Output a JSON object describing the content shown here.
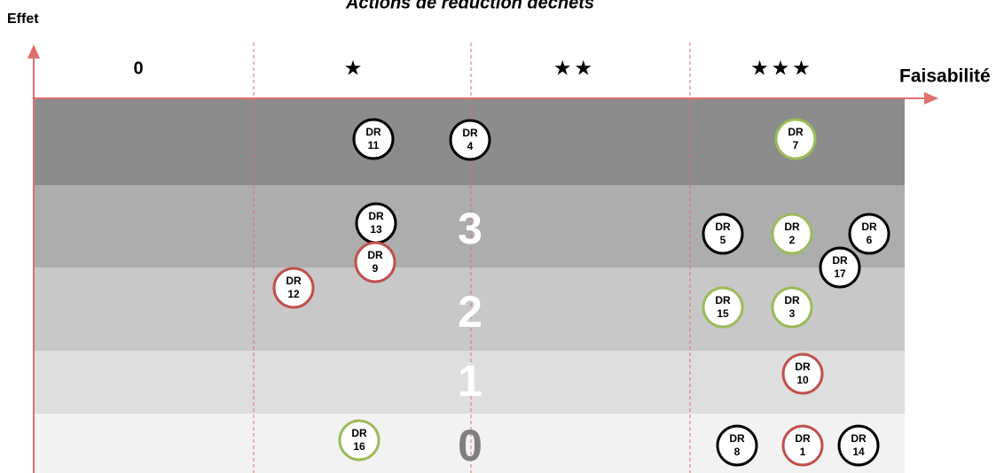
{
  "title": "Actions de réduction déchets",
  "y_axis_label": "Effet",
  "x_axis_label": "Faisabilité",
  "columns": [
    "0",
    "★",
    "★ ★",
    "★ ★ ★"
  ],
  "bands": [
    "3",
    "2",
    "1",
    "0"
  ],
  "actions": [
    {
      "label": "DR",
      "number": "11",
      "color": "#000000"
    },
    {
      "label": "DR",
      "number": "4",
      "color": "#000000"
    },
    {
      "label": "DR",
      "number": "7",
      "color": "#9bbb59"
    },
    {
      "label": "DR",
      "number": "13",
      "color": "#000000"
    },
    {
      "label": "DR",
      "number": "9",
      "color": "#c0504d"
    },
    {
      "label": "DR",
      "number": "12",
      "color": "#c0504d"
    },
    {
      "label": "DR",
      "number": "5",
      "color": "#000000"
    },
    {
      "label": "DR",
      "number": "2",
      "color": "#9bbb59"
    },
    {
      "label": "DR",
      "number": "6",
      "color": "#000000"
    },
    {
      "label": "DR",
      "number": "17",
      "color": "#000000"
    },
    {
      "label": "DR",
      "number": "15",
      "color": "#9bbb59"
    },
    {
      "label": "DR",
      "number": "3",
      "color": "#9bbb59"
    },
    {
      "label": "DR",
      "number": "10",
      "color": "#c0504d"
    },
    {
      "label": "DR",
      "number": "16",
      "color": "#9bbb59"
    },
    {
      "label": "DR",
      "number": "8",
      "color": "#000000"
    },
    {
      "label": "DR",
      "number": "1",
      "color": "#c0504d"
    },
    {
      "label": "DR",
      "number": "14",
      "color": "#000000"
    }
  ]
}
